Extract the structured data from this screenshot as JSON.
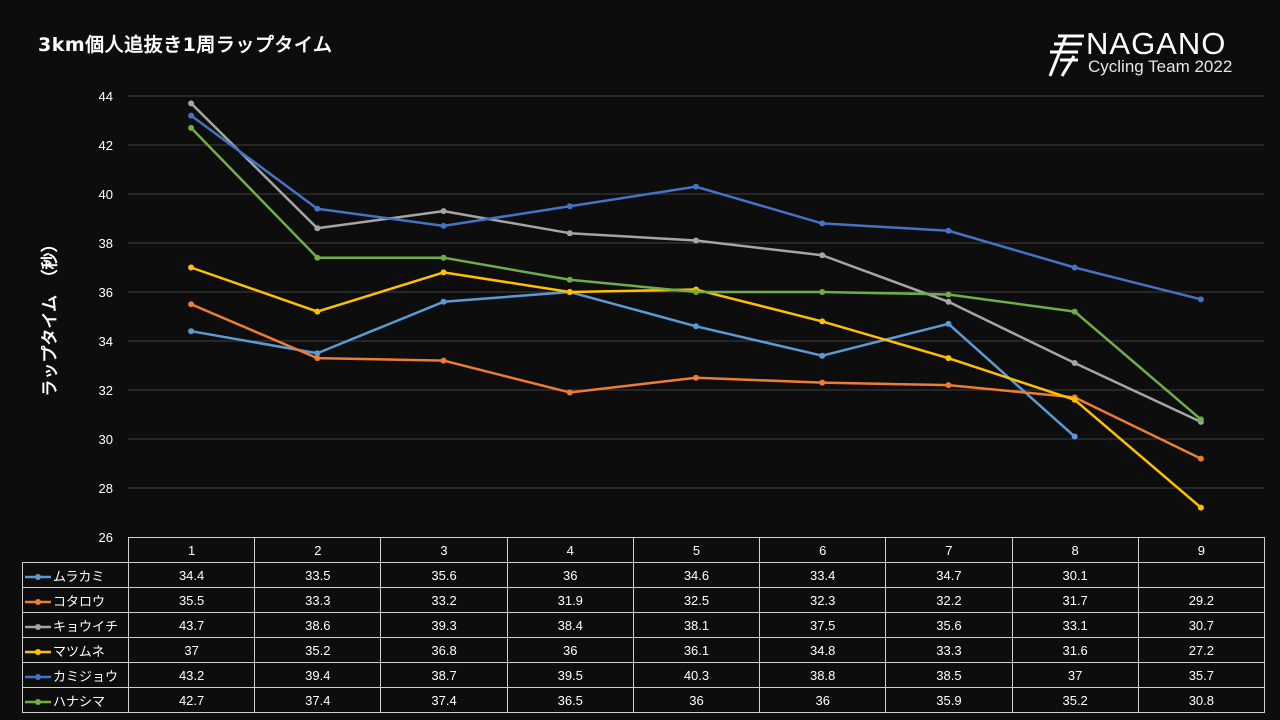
{
  "chart_data": {
    "type": "line",
    "title": "3km個人追抜き1周ラップタイム",
    "ylabel": "ラップタイム　（秒）",
    "xlabel": "",
    "ylim": [
      26,
      44
    ],
    "ytick_step": 2,
    "grid": true,
    "categories": [
      "1",
      "2",
      "3",
      "4",
      "5",
      "6",
      "7",
      "8",
      "9"
    ],
    "series": [
      {
        "name": "ムラカミ",
        "color": "#5b9bd5",
        "values": [
          34.4,
          33.5,
          35.6,
          36,
          34.6,
          33.4,
          34.7,
          30.1,
          null
        ]
      },
      {
        "name": "コタロウ",
        "color": "#ed7d31",
        "values": [
          35.5,
          33.3,
          33.2,
          31.9,
          32.5,
          32.3,
          32.2,
          31.7,
          29.2
        ]
      },
      {
        "name": "キョウイチ",
        "color": "#a5a5a5",
        "values": [
          43.7,
          38.6,
          39.3,
          38.4,
          38.1,
          37.5,
          35.6,
          33.1,
          30.7
        ]
      },
      {
        "name": "マツムネ",
        "color": "#ffc000",
        "values": [
          37,
          35.2,
          36.8,
          36,
          36.1,
          34.8,
          33.3,
          31.6,
          27.2
        ]
      },
      {
        "name": "カミジョウ",
        "color": "#4472c4",
        "values": [
          43.2,
          39.4,
          38.7,
          39.5,
          40.3,
          38.8,
          38.5,
          37,
          35.7
        ]
      },
      {
        "name": "ハナシマ",
        "color": "#70ad47",
        "values": [
          42.7,
          37.4,
          37.4,
          36.5,
          36,
          36,
          35.9,
          35.2,
          30.8
        ]
      }
    ],
    "data_table": true
  },
  "logo": {
    "brand": "NAGANO",
    "subtitle": "Cycling Team 2022"
  }
}
